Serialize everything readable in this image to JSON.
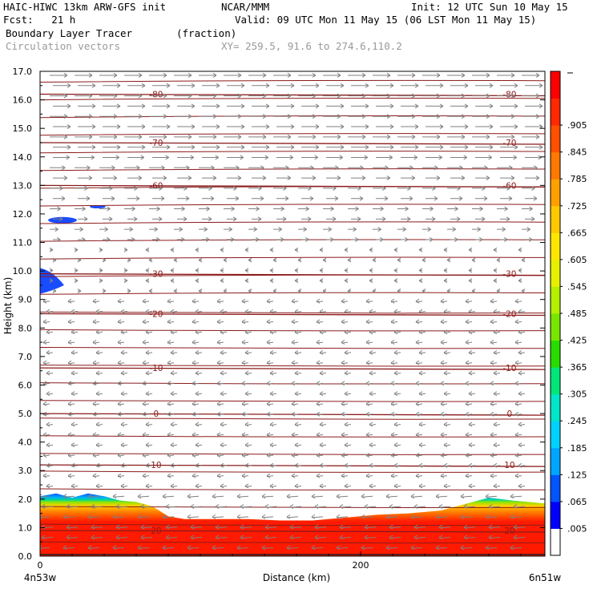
{
  "header": {
    "model": "HAIC-HIWC 13km ARW-GFS init",
    "org": "NCAR/MMM",
    "init": "Init: 12 UTC Sun 10 May 15",
    "fcst": "Fcst:   21 h",
    "valid": "Valid: 09 UTC Mon 11 May 15 (06 LST Mon 11 May 15)",
    "field": "Boundary Layer Tracer",
    "units": "(fraction)",
    "vectors": "Circulation vectors",
    "xy": "XY= 259.5, 91.6 to 274.6,110.2"
  },
  "colors": {
    "contour": "#8b1a1a",
    "vector": "#808080",
    "tracer_high": "#ff1a00",
    "tracer_mid": "#ffd000",
    "tracer_low": "#0050ff"
  },
  "chart_data": {
    "type": "heatmap",
    "xlabel": "Distance (km)",
    "ylabel": "Height (km)",
    "xlim": [
      0,
      315
    ],
    "ylim": [
      0,
      17
    ],
    "x_ticks": [
      {
        "value": 0,
        "label": "0"
      },
      {
        "value": 200,
        "label": "200"
      }
    ],
    "x_end_labels": {
      "left": "4n53w",
      "right": "6n51w"
    },
    "y_ticks": [
      "0.0",
      "1.0",
      "2.0",
      "3.0",
      "4.0",
      "5.0",
      "6.0",
      "7.0",
      "8.0",
      "9.0",
      "10.0",
      "11.0",
      "12.0",
      "13.0",
      "14.0",
      "15.0",
      "16.0",
      "17.0"
    ],
    "colorbar": {
      "labels": [
        ".005",
        ".065",
        ".125",
        ".185",
        ".245",
        ".305",
        ".365",
        ".425",
        ".485",
        ".545",
        ".605",
        ".665",
        ".725",
        ".785",
        ".845",
        ".905"
      ],
      "colors": [
        "#ffffff",
        "#0000ff",
        "#0055ff",
        "#00a5ff",
        "#00d2ff",
        "#00e6c8",
        "#00e678",
        "#28dc00",
        "#78e600",
        "#b4f000",
        "#e6f000",
        "#ffe600",
        "#ffc800",
        "#ffa000",
        "#ff7800",
        "#ff5000",
        "#ff2800",
        "#ff0000"
      ]
    },
    "temperature_contours": [
      {
        "label": "-80",
        "height_km": 16.2
      },
      {
        "label": "-70",
        "height_km": 14.5
      },
      {
        "label": "-60",
        "height_km": 13.0
      },
      {
        "label": "-30",
        "height_km": 9.9
      },
      {
        "label": "-20",
        "height_km": 8.5
      },
      {
        "label": "-10",
        "height_km": 6.6
      },
      {
        "label": "0",
        "height_km": 5.0
      },
      {
        "label": "10",
        "height_km": 3.2
      },
      {
        "label": "20",
        "height_km": 0.9
      }
    ],
    "tracer_top_km": [
      [
        0,
        2.1
      ],
      [
        10,
        2.2
      ],
      [
        20,
        2.05
      ],
      [
        30,
        2.2
      ],
      [
        40,
        2.1
      ],
      [
        50,
        1.95
      ],
      [
        60,
        1.9
      ],
      [
        70,
        1.75
      ],
      [
        80,
        1.4
      ],
      [
        90,
        1.3
      ],
      [
        110,
        1.3
      ],
      [
        130,
        1.3
      ],
      [
        150,
        1.25
      ],
      [
        170,
        1.25
      ],
      [
        190,
        1.35
      ],
      [
        210,
        1.45
      ],
      [
        230,
        1.5
      ],
      [
        250,
        1.6
      ],
      [
        270,
        1.9
      ],
      [
        280,
        2.05
      ],
      [
        295,
        1.95
      ],
      [
        315,
        1.85
      ]
    ],
    "wind_notes": "Westerly flow aloft (above ~10 km), weak easterly flow below ~9 km"
  }
}
